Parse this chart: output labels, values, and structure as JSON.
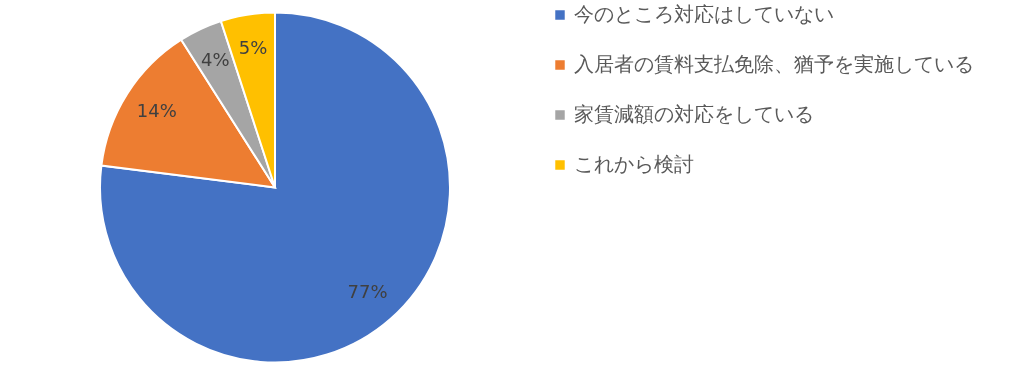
{
  "chart_data": {
    "type": "pie",
    "categories": [
      "今のところ対応はしていない",
      "入居者の賃料支払免除、猶予を実施している",
      "家賃減額の対応をしている",
      "これから検討"
    ],
    "values": [
      77,
      14,
      4,
      5
    ],
    "colors": [
      "#4472c4",
      "#ed7d31",
      "#a5a5a5",
      "#ffc000"
    ],
    "value_labels": [
      "77%",
      "14%",
      "4%",
      "5%"
    ],
    "legend": "right"
  }
}
